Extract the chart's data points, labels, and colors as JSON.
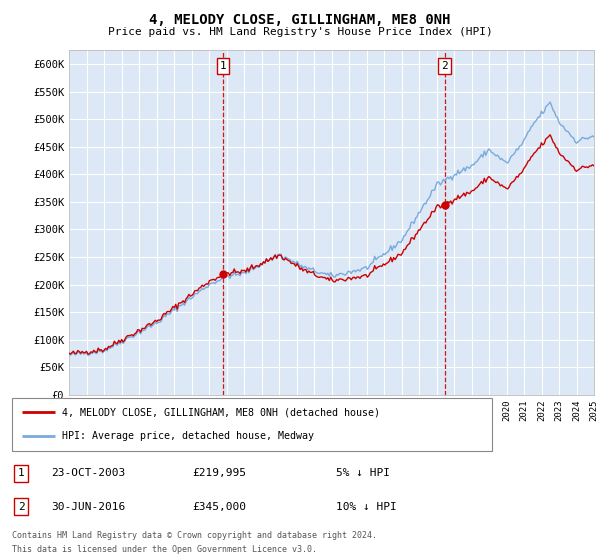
{
  "title": "4, MELODY CLOSE, GILLINGHAM, ME8 0NH",
  "subtitle": "Price paid vs. HM Land Registry's House Price Index (HPI)",
  "ylim": [
    0,
    625000
  ],
  "yticks": [
    0,
    50000,
    100000,
    150000,
    200000,
    250000,
    300000,
    350000,
    400000,
    450000,
    500000,
    550000,
    600000
  ],
  "x_start_year": 1995,
  "x_end_year": 2025,
  "sale1_date": "23-OCT-2003",
  "sale1_price": 219995,
  "sale1_label": "1",
  "sale1_hpi_diff": "5% ↓ HPI",
  "sale2_date": "30-JUN-2016",
  "sale2_price": 345000,
  "sale2_label": "2",
  "sale2_hpi_diff": "10% ↓ HPI",
  "legend_line1": "4, MELODY CLOSE, GILLINGHAM, ME8 0NH (detached house)",
  "legend_line2": "HPI: Average price, detached house, Medway",
  "footer1": "Contains HM Land Registry data © Crown copyright and database right 2024.",
  "footer2": "This data is licensed under the Open Government Licence v3.0.",
  "line_color_red": "#cc0000",
  "line_color_blue": "#7aaadd",
  "bg_color": "#dce8f5",
  "grid_color": "#ffffff",
  "box_color": "#cc0000",
  "dashed_color": "#cc0000",
  "hpi_key_x": [
    1995,
    1997,
    2000,
    2003,
    2004,
    2005,
    2007,
    2008.5,
    2010,
    2012,
    2014,
    2016,
    2017,
    2018,
    2019,
    2020,
    2021,
    2021.5,
    2022,
    2022.5,
    2023,
    2024,
    2025
  ],
  "hpi_key_y": [
    72000,
    80000,
    130000,
    200000,
    215000,
    220000,
    255000,
    230000,
    215000,
    230000,
    280000,
    380000,
    400000,
    415000,
    445000,
    420000,
    460000,
    490000,
    510000,
    530000,
    495000,
    460000,
    470000
  ]
}
